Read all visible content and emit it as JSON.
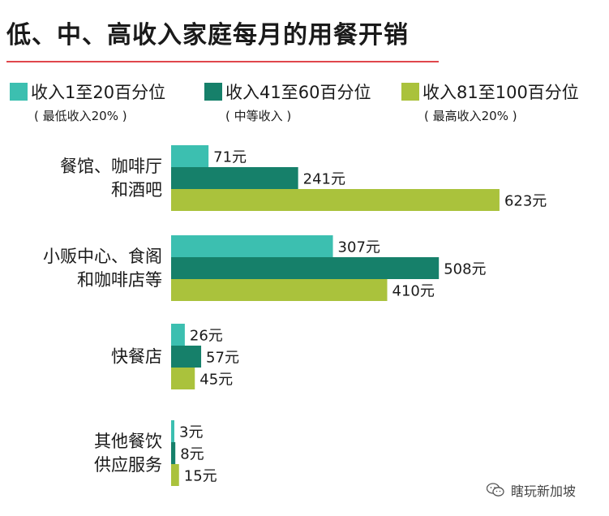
{
  "title": "低、中、高收入家庭每月的用餐开销",
  "colors": {
    "low": "#3cbfb0",
    "mid": "#16806a",
    "high": "#aac23c",
    "rule": "#e0474c"
  },
  "legend": [
    {
      "label": "收入1至20百分位",
      "sub": "( 最低收入20% )",
      "color_key": "low"
    },
    {
      "label": "收入41至60百分位",
      "sub": "( 中等收入 )",
      "color_key": "mid"
    },
    {
      "label": "收入81至100百分位",
      "sub": "( 最高收入20% )",
      "color_key": "high"
    }
  ],
  "chart_data": {
    "type": "bar",
    "orientation": "horizontal",
    "title": "低、中、高收入家庭每月的用餐开销",
    "categories": [
      [
        "餐馆、咖啡厅",
        "和酒吧"
      ],
      [
        "小贩中心、食阁",
        "和咖啡店等"
      ],
      [
        "快餐店"
      ],
      [
        "其他餐饮",
        "供应服务"
      ]
    ],
    "series": [
      {
        "name": "收入1至20百分位",
        "values": [
          71,
          307,
          26,
          3
        ],
        "labels": [
          "71元",
          "307元",
          "26元",
          "3元"
        ]
      },
      {
        "name": "收入41至60百分位",
        "values": [
          241,
          508,
          57,
          8
        ],
        "labels": [
          "241元",
          "508元",
          "57元",
          "8元"
        ]
      },
      {
        "name": "收入81至100百分位",
        "values": [
          623,
          410,
          45,
          15
        ],
        "labels": [
          "623元",
          "410元",
          "45元",
          "15元"
        ]
      }
    ],
    "grid": false,
    "legend_position": "top"
  },
  "watermark": "瞎玩新加坡",
  "watermark_icon": "wechat-icon"
}
